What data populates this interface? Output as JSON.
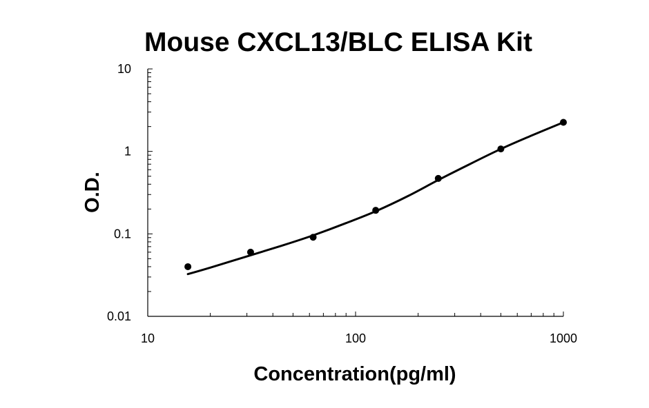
{
  "chart_data": {
    "type": "scatter",
    "title": "Mouse CXCL13/BLC ELISA Kit",
    "xlabel": "Concentration(pg/ml)",
    "ylabel": "O.D.",
    "x_scale": "log",
    "y_scale": "log",
    "xlim": [
      10,
      1000
    ],
    "ylim": [
      0.01,
      10
    ],
    "x_ticks": [
      "10",
      "100",
      "1000"
    ],
    "y_ticks": [
      "0.01",
      "0.1",
      "1",
      "10"
    ],
    "grid": false,
    "legend": "none",
    "series": [
      {
        "points": [
          {
            "x": 15.6,
            "y": 0.04
          },
          {
            "x": 31.25,
            "y": 0.06
          },
          {
            "x": 62.5,
            "y": 0.091
          },
          {
            "x": 125,
            "y": 0.193
          },
          {
            "x": 250,
            "y": 0.47
          },
          {
            "x": 500,
            "y": 1.07
          },
          {
            "x": 1000,
            "y": 2.25
          }
        ]
      }
    ],
    "fit_curve": [
      {
        "x": 15.6,
        "y": 0.0325
      },
      {
        "x": 20,
        "y": 0.039
      },
      {
        "x": 31.25,
        "y": 0.055
      },
      {
        "x": 45,
        "y": 0.073
      },
      {
        "x": 62.5,
        "y": 0.096
      },
      {
        "x": 90,
        "y": 0.135
      },
      {
        "x": 125,
        "y": 0.188
      },
      {
        "x": 180,
        "y": 0.29
      },
      {
        "x": 250,
        "y": 0.45
      },
      {
        "x": 350,
        "y": 0.69
      },
      {
        "x": 500,
        "y": 1.07
      },
      {
        "x": 700,
        "y": 1.55
      },
      {
        "x": 1000,
        "y": 2.25
      }
    ],
    "colors": {
      "points": "#000000",
      "curve": "#000000",
      "axis": "#000000"
    }
  }
}
